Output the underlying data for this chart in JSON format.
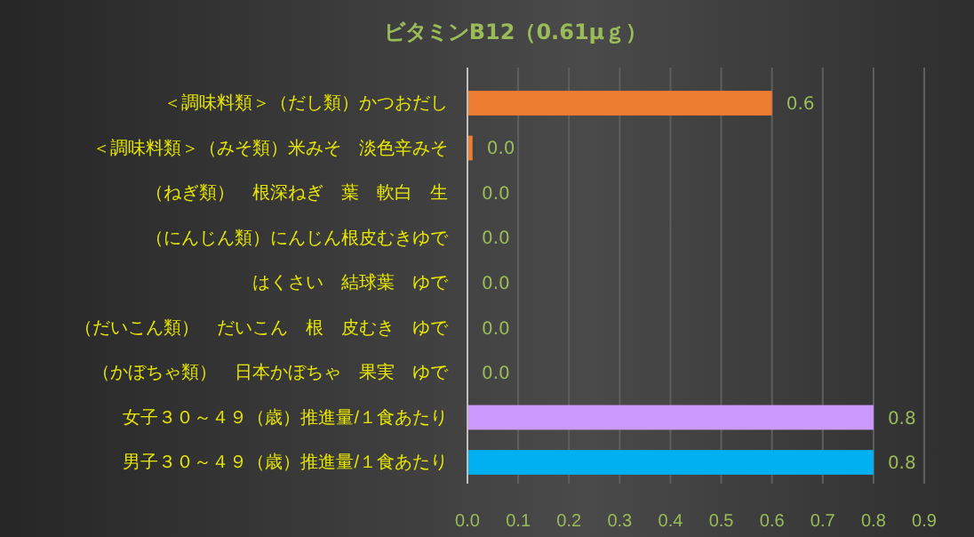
{
  "chart_data": {
    "type": "bar",
    "orientation": "horizontal",
    "title": "ビタミンB12（0.61μｇ）",
    "categories": [
      "＜調味料類＞（だし類）かつおだし",
      "＜調味料類＞（みそ類）米みそ　淡色辛みそ",
      "（ねぎ類）　根深ねぎ　葉　軟白　生",
      "（にんじん類）にんじん根皮むきゆで",
      "はくさい　結球葉　ゆで",
      "（だいこん類）　だいこん　根　皮むき　ゆで",
      "（かぼちゃ類）　日本かぼちゃ　果実　ゆで",
      "女子３０～４９（歳）推進量/１食あたり",
      "男子３０～４９（歳）推進量/１食あたり"
    ],
    "values": [
      0.6,
      0.01,
      0,
      0,
      0,
      0,
      0,
      0.8,
      0.8
    ],
    "value_labels": [
      "0.6",
      "0.0",
      "0.0",
      "0.0",
      "0.0",
      "0.0",
      "0.0",
      "0.8",
      "0.8"
    ],
    "colors": [
      "#ed7d31",
      "#ed7d31",
      "#ed7d31",
      "#ed7d31",
      "#ed7d31",
      "#ed7d31",
      "#ed7d31",
      "#cc99ff",
      "#00b0f0"
    ],
    "xlim": [
      0,
      0.9
    ],
    "xticks": [
      {
        "value": 0,
        "label": "0.0"
      },
      0.1,
      0.2,
      0.3,
      0.4,
      0.5,
      0.6,
      0.7,
      0.8,
      0.9
    ],
    "grid": "x"
  }
}
